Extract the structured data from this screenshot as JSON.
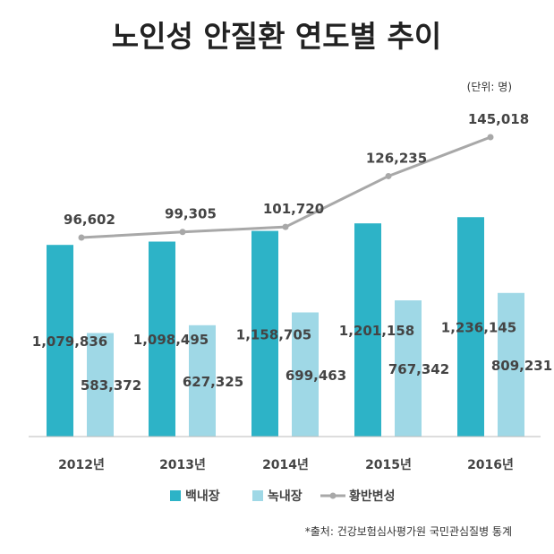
{
  "chart_data": {
    "type": "bar",
    "title": "노인성 안질환 연도별 추이",
    "unit_note": "(단위: 명)",
    "source": "*출처: 건강보험심사평가원 국민관심질병 통계",
    "categories": [
      "2012년",
      "2013년",
      "2014년",
      "2015년",
      "2016년"
    ],
    "series": [
      {
        "name": "백내장",
        "type": "bar",
        "color": "#2db3c7",
        "values": [
          1079836,
          1098495,
          1158705,
          1201158,
          1236145
        ],
        "labels": [
          "1,079,836",
          "1,098,495",
          "1,158,705",
          "1,201,158",
          "1,236,145"
        ]
      },
      {
        "name": "녹내장",
        "type": "bar",
        "color": "#9fd8e6",
        "values": [
          583372,
          627325,
          699463,
          767342,
          809231
        ],
        "labels": [
          "583,372",
          "627,325",
          "699,463",
          "767,342",
          "809,231"
        ]
      },
      {
        "name": "황반변성",
        "type": "line",
        "color": "#a8a8a8",
        "values": [
          96602,
          99305,
          101720,
          126235,
          145018
        ],
        "labels": [
          "96,602",
          "99,305",
          "101,720",
          "126,235",
          "145,018"
        ]
      }
    ],
    "legend_position": "bottom",
    "grid": false
  }
}
